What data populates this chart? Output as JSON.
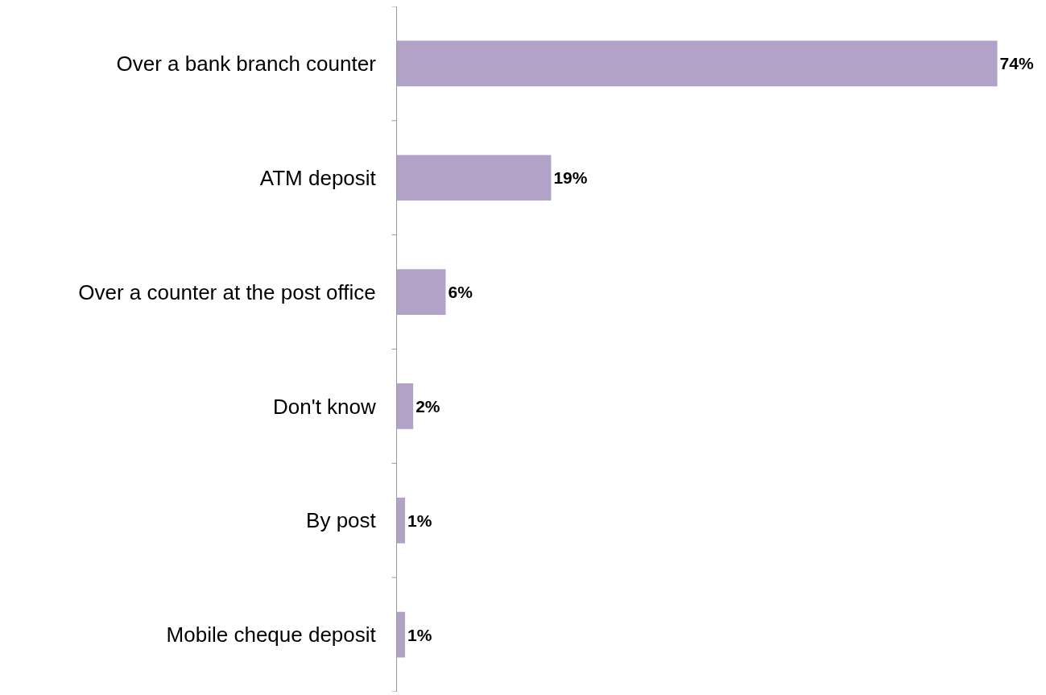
{
  "chart_data": {
    "type": "bar",
    "orientation": "horizontal",
    "categories": [
      "Over a bank branch counter",
      "ATM deposit",
      "Over a counter at the post office",
      "Don't know",
      "By post",
      "Mobile cheque deposit"
    ],
    "values": [
      74,
      19,
      6,
      2,
      1,
      1
    ],
    "value_labels": [
      "74%",
      "19%",
      "6%",
      "2%",
      "1%",
      "1%"
    ],
    "color": "#b3a2c7",
    "xlim": [
      0,
      80
    ],
    "tick_labels": "y"
  }
}
